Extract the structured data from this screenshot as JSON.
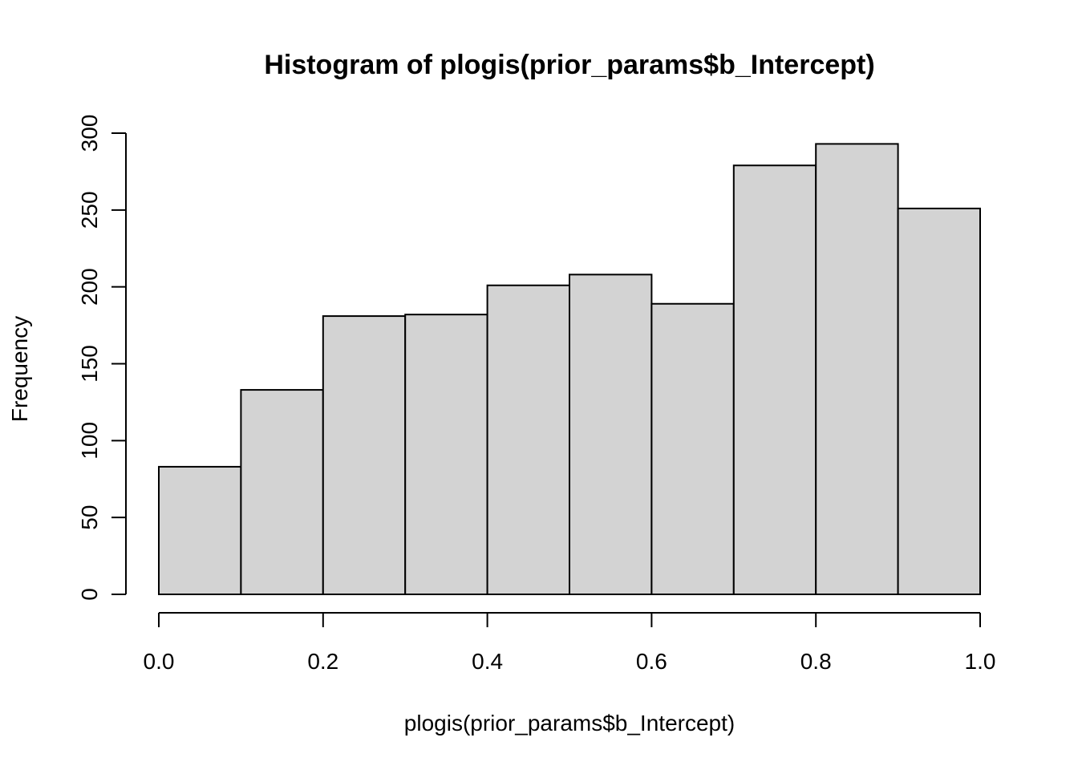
{
  "chart_data": {
    "type": "bar",
    "title": "Histogram of plogis(prior_params$b_Intercept)",
    "xlabel": "plogis(prior_params$b_Intercept)",
    "ylabel": "Frequency",
    "bins": [
      {
        "from": 0.0,
        "to": 0.1,
        "count": 83
      },
      {
        "from": 0.1,
        "to": 0.2,
        "count": 133
      },
      {
        "from": 0.2,
        "to": 0.3,
        "count": 181
      },
      {
        "from": 0.3,
        "to": 0.4,
        "count": 182
      },
      {
        "from": 0.4,
        "to": 0.5,
        "count": 201
      },
      {
        "from": 0.5,
        "to": 0.6,
        "count": 208
      },
      {
        "from": 0.6,
        "to": 0.7,
        "count": 189
      },
      {
        "from": 0.7,
        "to": 0.8,
        "count": 279
      },
      {
        "from": 0.8,
        "to": 0.9,
        "count": 293
      },
      {
        "from": 0.9,
        "to": 1.0,
        "count": 251
      }
    ],
    "xlim": [
      0,
      1
    ],
    "ylim": [
      0,
      300
    ],
    "x_ticks": [
      0.0,
      0.2,
      0.4,
      0.6,
      0.8,
      1.0
    ],
    "x_tick_labels": [
      "0.0",
      "0.2",
      "0.4",
      "0.6",
      "0.8",
      "1.0"
    ],
    "y_ticks": [
      0,
      50,
      100,
      150,
      200,
      250,
      300
    ],
    "y_tick_labels": [
      "0",
      "50",
      "100",
      "150",
      "200",
      "250",
      "300"
    ],
    "grid": false,
    "legend": "none",
    "bar_fill": "#d3d3d3",
    "bar_stroke": "#000000"
  }
}
